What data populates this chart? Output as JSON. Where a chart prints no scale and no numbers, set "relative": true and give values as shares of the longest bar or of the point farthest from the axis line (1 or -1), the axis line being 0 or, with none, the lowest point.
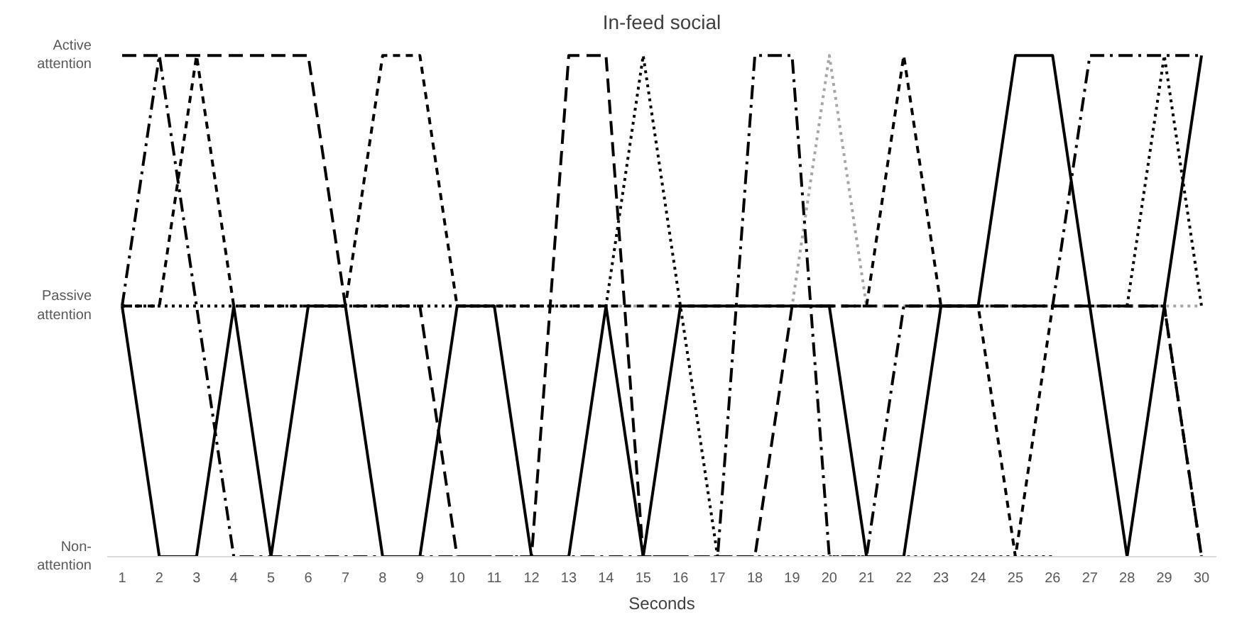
{
  "chart_data": {
    "type": "line",
    "title": "In-feed social",
    "xlabel": "Seconds",
    "relative": true,
    "x": [
      1,
      2,
      3,
      4,
      5,
      6,
      7,
      8,
      9,
      10,
      11,
      12,
      13,
      14,
      15,
      16,
      17,
      18,
      19,
      20,
      21,
      22,
      23,
      24,
      25,
      26,
      27,
      28,
      29,
      30
    ],
    "xlim": [
      0.6,
      30.4
    ],
    "xticks": [
      1,
      2,
      3,
      4,
      5,
      6,
      7,
      8,
      9,
      10,
      11,
      12,
      13,
      14,
      15,
      16,
      17,
      18,
      19,
      20,
      21,
      22,
      23,
      24,
      25,
      26,
      27,
      28,
      29,
      30
    ],
    "annotations": [
      "Non-\nattention",
      "Passive\nattention",
      "Active\nattention"
    ],
    "marker": "none",
    "series": [
      {
        "color": "#a6a6a6",
        "line_style": "dotted",
        "values": [
          0.5,
          0.5,
          0.5,
          0.5,
          0.5,
          0.5,
          0.5,
          0.5,
          0.5,
          0.5,
          0.5,
          0.5,
          0.5,
          0.5,
          0.5,
          0.5,
          0.5,
          0.5,
          0.5,
          1,
          0.5,
          0.5,
          0.5,
          0.5,
          0.5,
          0.5,
          0.5,
          0.5,
          0.5,
          0.5
        ]
      },
      {
        "color": "#000000",
        "line_style": "dotted",
        "values": [
          0.5,
          0.5,
          0.5,
          0.5,
          0.5,
          0.5,
          0.5,
          0.5,
          0.5,
          0.5,
          0.5,
          0.5,
          0.5,
          0.5,
          1,
          0.5,
          0,
          0,
          0,
          0,
          0,
          0,
          0,
          0,
          0,
          0,
          null,
          0.5,
          1,
          0.5
        ]
      },
      {
        "color": "#000000",
        "line_style": "dashdot",
        "values": [
          0.5,
          1,
          0.5,
          0,
          0,
          0,
          0,
          0,
          0,
          0,
          0,
          0,
          0,
          0,
          0,
          0,
          0,
          1,
          1,
          0,
          0,
          0.5,
          0.5,
          0.5,
          0.5,
          0.5,
          1,
          1,
          1,
          1
        ]
      },
      {
        "color": "#000000",
        "line_style": "dashed",
        "values": [
          1,
          1,
          1,
          1,
          1,
          1,
          0.5,
          0.5,
          0.5,
          0,
          0,
          0,
          1,
          1,
          0,
          0,
          0,
          0,
          0.5,
          0.5,
          0.5,
          0.5,
          0.5,
          0.5,
          0.5,
          0.5,
          0.5,
          0.5,
          0.5,
          0
        ]
      },
      {
        "color": "#000000",
        "line_style": "short_dashed",
        "values": [
          0.5,
          0.5,
          1,
          0.5,
          0.5,
          0.5,
          0.5,
          1,
          1,
          0.5,
          0.5,
          0.5,
          0.5,
          0.5,
          0.5,
          0.5,
          0.5,
          0.5,
          0.5,
          0.5,
          0.5,
          1,
          0.5,
          0.5,
          0,
          0.5,
          0.5,
          0.5,
          0.5,
          0
        ]
      },
      {
        "color": "#000000",
        "line_style": "solid",
        "values": [
          0.5,
          0,
          0,
          0.5,
          0,
          0.5,
          0.5,
          0,
          0,
          0.5,
          0.5,
          0,
          0,
          0.5,
          0,
          0.5,
          0.5,
          0.5,
          0.5,
          0.5,
          0,
          0,
          0.5,
          0.5,
          1,
          1,
          0.5,
          0,
          0.5,
          1
        ]
      }
    ]
  }
}
